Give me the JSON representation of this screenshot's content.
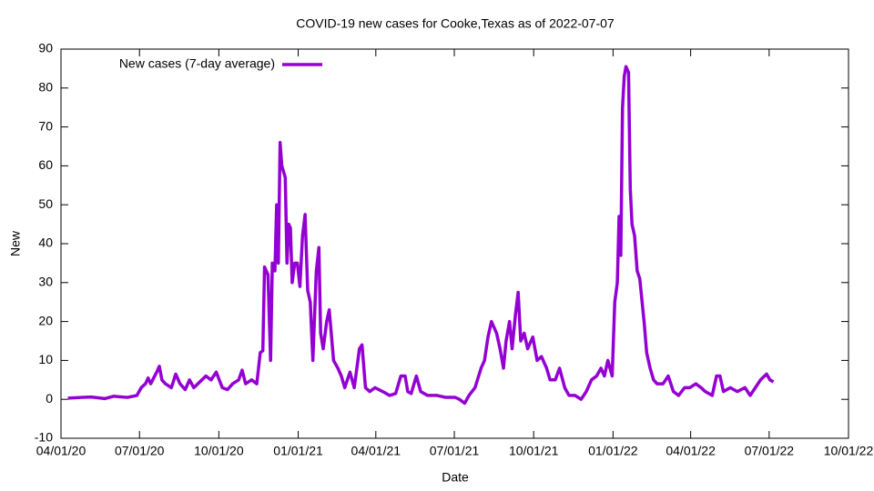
{
  "chart_data": {
    "type": "line",
    "title": "COVID-19 new cases for Cooke,Texas as of 2022-07-07",
    "x_label": "Date",
    "y_label": "New",
    "legend": "top-left",
    "x": [
      "2020-04-09",
      "2020-04-25",
      "2020-05-06",
      "2020-05-22",
      "2020-06-01",
      "2020-06-17",
      "2020-06-28",
      "2020-07-03",
      "2020-07-08",
      "2020-07-11",
      "2020-07-14",
      "2020-07-21",
      "2020-07-24",
      "2020-07-27",
      "2020-07-31",
      "2020-08-07",
      "2020-08-12",
      "2020-08-17",
      "2020-08-23",
      "2020-08-28",
      "2020-09-02",
      "2020-09-09",
      "2020-09-16",
      "2020-09-22",
      "2020-09-28",
      "2020-10-05",
      "2020-10-11",
      "2020-10-17",
      "2020-10-24",
      "2020-10-28",
      "2020-11-01",
      "2020-11-08",
      "2020-11-14",
      "2020-11-18",
      "2020-11-21",
      "2020-11-23",
      "2020-11-27",
      "2020-11-30",
      "2020-12-02",
      "2020-12-05",
      "2020-12-07",
      "2020-12-09",
      "2020-12-11",
      "2020-12-13",
      "2020-12-17",
      "2020-12-19",
      "2020-12-21",
      "2020-12-23",
      "2020-12-25",
      "2020-12-28",
      "2020-12-31",
      "2021-01-03",
      "2021-01-06",
      "2021-01-09",
      "2021-01-12",
      "2021-01-15",
      "2021-01-18",
      "2021-01-22",
      "2021-01-25",
      "2021-01-27",
      "2021-01-30",
      "2021-02-03",
      "2021-02-06",
      "2021-02-11",
      "2021-02-16",
      "2021-02-20",
      "2021-02-24",
      "2021-03-02",
      "2021-03-07",
      "2021-03-13",
      "2021-03-16",
      "2021-03-20",
      "2021-03-25",
      "2021-03-31",
      "2021-04-09",
      "2021-04-17",
      "2021-04-24",
      "2021-04-30",
      "2021-05-05",
      "2021-05-08",
      "2021-05-12",
      "2021-05-18",
      "2021-05-23",
      "2021-05-31",
      "2021-06-11",
      "2021-06-21",
      "2021-07-02",
      "2021-07-07",
      "2021-07-13",
      "2021-07-18",
      "2021-07-25",
      "2021-08-01",
      "2021-08-05",
      "2021-08-09",
      "2021-08-13",
      "2021-08-19",
      "2021-08-23",
      "2021-08-27",
      "2021-08-30",
      "2021-09-03",
      "2021-09-06",
      "2021-09-10",
      "2021-09-13",
      "2021-09-16",
      "2021-09-20",
      "2021-09-24",
      "2021-09-30",
      "2021-10-05",
      "2021-10-10",
      "2021-10-16",
      "2021-10-20",
      "2021-10-26",
      "2021-10-31",
      "2021-11-06",
      "2021-11-11",
      "2021-11-18",
      "2021-11-25",
      "2021-12-01",
      "2021-12-07",
      "2021-12-13",
      "2021-12-18",
      "2021-12-22",
      "2021-12-26",
      "2021-12-31",
      "2022-01-03",
      "2022-01-06",
      "2022-01-08",
      "2022-01-10",
      "2022-01-12",
      "2022-01-14",
      "2022-01-16",
      "2022-01-19",
      "2022-01-21",
      "2022-01-23",
      "2022-01-26",
      "2022-01-29",
      "2022-02-01",
      "2022-02-06",
      "2022-02-09",
      "2022-02-13",
      "2022-02-17",
      "2022-02-21",
      "2022-02-28",
      "2022-03-06",
      "2022-03-12",
      "2022-03-18",
      "2022-03-25",
      "2022-03-31",
      "2022-04-07",
      "2022-04-13",
      "2022-04-18",
      "2022-04-26",
      "2022-05-01",
      "2022-05-05",
      "2022-05-09",
      "2022-05-17",
      "2022-05-25",
      "2022-06-03",
      "2022-06-09",
      "2022-06-15",
      "2022-06-21",
      "2022-06-28",
      "2022-07-02",
      "2022-07-06"
    ],
    "series": [
      {
        "name": "New cases (7-day average)",
        "color": "#9400d3",
        "values": [
          0.3,
          0.5,
          0.6,
          0.2,
          0.8,
          0.5,
          1,
          3,
          4,
          5.5,
          4,
          7,
          8.5,
          5,
          4,
          3,
          6.5,
          4,
          2.5,
          5,
          3,
          4.5,
          6,
          5,
          7,
          3,
          2.5,
          4,
          5,
          7.5,
          4,
          5,
          4,
          12,
          12.5,
          34,
          32,
          10,
          35,
          33,
          50,
          35,
          66,
          60,
          57,
          35,
          45,
          44,
          30,
          35,
          35,
          29,
          42,
          47.5,
          28,
          25,
          10,
          33,
          39,
          17,
          13,
          20,
          23,
          10,
          8,
          6,
          3,
          7,
          3,
          13,
          14,
          3,
          2,
          3,
          2,
          1,
          1.5,
          6,
          6,
          2,
          1.5,
          6,
          2,
          1,
          1,
          0.5,
          0.5,
          0,
          -1,
          1,
          3,
          8,
          10,
          16,
          20,
          17,
          13,
          8,
          15,
          20,
          13,
          22,
          27.5,
          15,
          17,
          13,
          16,
          10,
          11,
          8,
          5,
          5,
          8,
          3,
          1,
          1,
          0,
          2,
          5,
          6,
          8,
          6,
          10,
          6,
          25,
          30,
          47,
          37,
          75,
          83,
          85.5,
          84,
          54,
          45,
          42,
          33,
          31,
          20,
          12,
          8,
          5,
          4,
          4,
          6,
          2,
          1,
          3,
          3,
          4,
          3,
          2,
          1,
          6,
          6,
          2,
          3,
          2,
          3,
          1,
          3,
          5,
          6.5,
          5,
          4.5
        ]
      }
    ],
    "xlim": [
      "2020-04-01",
      "2022-10-01"
    ],
    "xticks": [
      {
        "value": "2020-04-01",
        "label": "04/01/20"
      },
      {
        "value": "2020-07-01",
        "label": "07/01/20"
      },
      {
        "value": "2020-10-01",
        "label": "10/01/20"
      },
      {
        "value": "2021-01-01",
        "label": "01/01/21"
      },
      {
        "value": "2021-04-01",
        "label": "04/01/21"
      },
      {
        "value": "2021-07-01",
        "label": "07/01/21"
      },
      {
        "value": "2021-10-01",
        "label": "10/01/21"
      },
      {
        "value": "2022-01-01",
        "label": "01/01/22"
      },
      {
        "value": "2022-04-01",
        "label": "04/01/22"
      },
      {
        "value": "2022-07-01",
        "label": "07/01/22"
      },
      {
        "value": "2022-10-01",
        "label": "10/01/22"
      }
    ],
    "ylim": [
      -10,
      90
    ],
    "yticks": [
      -10,
      0,
      10,
      20,
      30,
      40,
      50,
      60,
      70,
      80,
      90
    ]
  }
}
